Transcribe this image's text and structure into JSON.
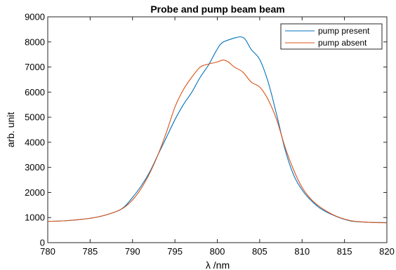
{
  "chart_data": {
    "type": "line",
    "title": "Probe and pump beam beam",
    "xlabel": "λ /nm",
    "ylabel": "arb. unit",
    "xlim": [
      780,
      820
    ],
    "ylim": [
      0,
      9000
    ],
    "x_ticks": [
      "780",
      "785",
      "790",
      "795",
      "800",
      "805",
      "810",
      "815",
      "820"
    ],
    "y_ticks": [
      "0",
      "1000",
      "2000",
      "3000",
      "4000",
      "5000",
      "6000",
      "7000",
      "8000",
      "9000"
    ],
    "grid": false,
    "legend_position": "top-right",
    "series": [
      {
        "name": "pump present",
        "color": "#0072BD",
        "points": [
          [
            780,
            850
          ],
          [
            782,
            870
          ],
          [
            784,
            930
          ],
          [
            786,
            1030
          ],
          [
            788,
            1230
          ],
          [
            789,
            1420
          ],
          [
            790,
            1800
          ],
          [
            791,
            2250
          ],
          [
            792,
            2800
          ],
          [
            793,
            3500
          ],
          [
            794,
            4200
          ],
          [
            795,
            4900
          ],
          [
            796,
            5500
          ],
          [
            797,
            6000
          ],
          [
            798,
            6600
          ],
          [
            799,
            7100
          ],
          [
            799.8,
            7600
          ],
          [
            800.5,
            7950
          ],
          [
            801.5,
            8100
          ],
          [
            802.3,
            8180
          ],
          [
            802.8,
            8200
          ],
          [
            803.3,
            8100
          ],
          [
            804,
            7700
          ],
          [
            805,
            7300
          ],
          [
            806,
            6400
          ],
          [
            807,
            5100
          ],
          [
            808,
            3700
          ],
          [
            809,
            2700
          ],
          [
            810,
            2100
          ],
          [
            811,
            1700
          ],
          [
            812,
            1400
          ],
          [
            813,
            1200
          ],
          [
            814,
            1050
          ],
          [
            815,
            930
          ],
          [
            816,
            850
          ],
          [
            818,
            810
          ],
          [
            820,
            800
          ]
        ]
      },
      {
        "name": "pump absent",
        "color": "#D95319",
        "points": [
          [
            780,
            850
          ],
          [
            782,
            870
          ],
          [
            784,
            930
          ],
          [
            786,
            1030
          ],
          [
            788,
            1230
          ],
          [
            789,
            1400
          ],
          [
            790,
            1700
          ],
          [
            791,
            2150
          ],
          [
            792,
            2750
          ],
          [
            793,
            3500
          ],
          [
            794,
            4400
          ],
          [
            795,
            5400
          ],
          [
            796,
            6100
          ],
          [
            797,
            6600
          ],
          [
            798,
            7000
          ],
          [
            799,
            7120
          ],
          [
            800,
            7200
          ],
          [
            800.7,
            7280
          ],
          [
            801.3,
            7200
          ],
          [
            802,
            7000
          ],
          [
            803,
            6800
          ],
          [
            804,
            6400
          ],
          [
            805,
            6200
          ],
          [
            806,
            5700
          ],
          [
            807,
            4900
          ],
          [
            808,
            3800
          ],
          [
            809,
            2900
          ],
          [
            810,
            2200
          ],
          [
            811,
            1750
          ],
          [
            812,
            1450
          ],
          [
            813,
            1230
          ],
          [
            814,
            1060
          ],
          [
            815,
            940
          ],
          [
            816,
            860
          ],
          [
            818,
            810
          ],
          [
            820,
            790
          ]
        ]
      }
    ]
  }
}
